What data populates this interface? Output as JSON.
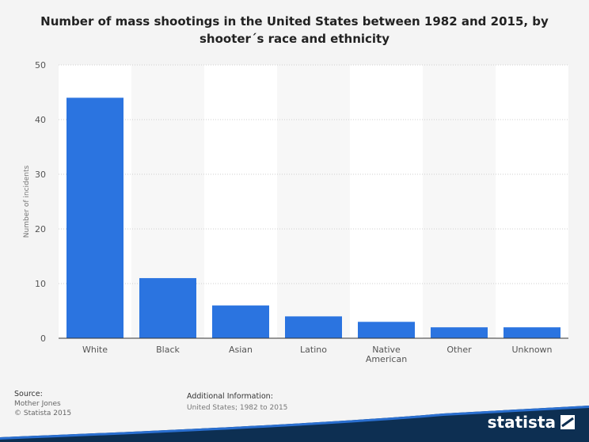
{
  "title_line1": "Number of mass shootings in the United States between 1982 and 2015, by",
  "title_line2": "shooter´s race and ethnicity",
  "source": {
    "header": "Source:",
    "lines": [
      "Mother Jones",
      "© Statista 2015"
    ]
  },
  "additional_info": {
    "header": "Additional Information:",
    "text": "United States; 1982 to 2015"
  },
  "brand": {
    "name": "statista",
    "icon": "statista-logo-icon"
  },
  "colors": {
    "bar": "#2b74e0",
    "band": "#0d2f52",
    "accent": "#2a6fd0"
  },
  "chart_data": {
    "type": "bar",
    "title": "Number of mass shootings in the United States between 1982 and 2015, by shooter´s race and ethnicity",
    "xlabel": "",
    "ylabel": "Number of incidents",
    "ylim": [
      0,
      50
    ],
    "yticks": [
      0,
      10,
      20,
      30,
      40,
      50
    ],
    "grid": true,
    "categories": [
      "White",
      "Black",
      "Asian",
      "Latino",
      "Native American",
      "Other",
      "Unknown"
    ],
    "category_lines": [
      [
        "White"
      ],
      [
        "Black"
      ],
      [
        "Asian"
      ],
      [
        "Latino"
      ],
      [
        "Native",
        "American"
      ],
      [
        "Other"
      ],
      [
        "Unknown"
      ]
    ],
    "values": [
      44,
      11,
      6,
      4,
      3,
      2,
      2
    ]
  }
}
